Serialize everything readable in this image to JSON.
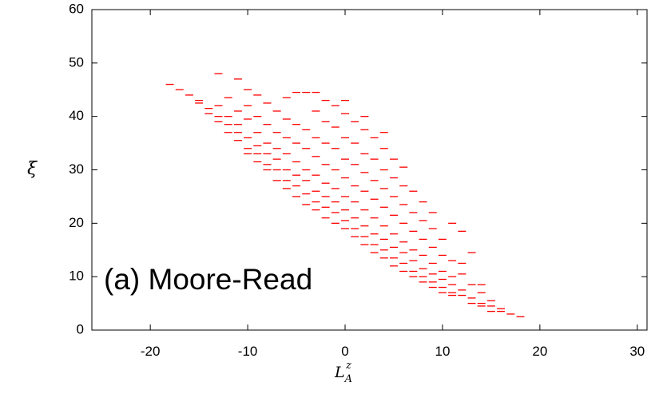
{
  "chart_data": {
    "type": "scatter",
    "annotation": "(a) Moore-Read",
    "x_label": {
      "base": "L",
      "sub": "A",
      "sup": "z"
    },
    "y_label": "ξ",
    "color": "#ff0000",
    "xlim": [
      -26,
      31
    ],
    "ylim": [
      0,
      60
    ],
    "xticks": [
      -20,
      -10,
      0,
      10,
      20,
      30
    ],
    "yticks": [
      0,
      10,
      20,
      30,
      40,
      50,
      60
    ],
    "x": [
      -18,
      -17,
      -16,
      -15,
      -15,
      -14,
      -14,
      -13,
      -13,
      -13,
      -13,
      -12,
      -12,
      -12,
      -12,
      -11,
      -11,
      -11,
      -11,
      -11,
      -10,
      -10,
      -10,
      -10,
      -10,
      -10,
      -9,
      -9,
      -9,
      -9,
      -9,
      -9,
      -8,
      -8,
      -8,
      -8,
      -8,
      -8,
      -7,
      -7,
      -7,
      -7,
      -7,
      -7,
      -6,
      -6,
      -6,
      -6,
      -6,
      -6,
      -6,
      -5,
      -5,
      -5,
      -5,
      -5,
      -5,
      -5,
      -4,
      -4,
      -4,
      -4,
      -4,
      -4,
      -4,
      -3,
      -3,
      -3,
      -3,
      -3,
      -3,
      -3,
      -3,
      -2,
      -2,
      -2,
      -2,
      -2,
      -2,
      -2,
      -2,
      -1,
      -1,
      -1,
      -1,
      -1,
      -1,
      -1,
      -1,
      0,
      0,
      0,
      0,
      0,
      0,
      0,
      0,
      0,
      1,
      1,
      1,
      1,
      1,
      1,
      1,
      1,
      2,
      2,
      2,
      2,
      2,
      2,
      2,
      2,
      2,
      3,
      3,
      3,
      3,
      3,
      3,
      3,
      3,
      4,
      4,
      4,
      4,
      4,
      4,
      4,
      4,
      4,
      5,
      5,
      5,
      5,
      5,
      5,
      5,
      5,
      6,
      6,
      6,
      6,
      6,
      6,
      6,
      6,
      7,
      7,
      7,
      7,
      7,
      7,
      7,
      8,
      8,
      8,
      8,
      8,
      8,
      8,
      9,
      9,
      9,
      9,
      9,
      9,
      9,
      10,
      10,
      10,
      10,
      10,
      10,
      11,
      11,
      11,
      11,
      11,
      11,
      12,
      12,
      12,
      12,
      12,
      13,
      13,
      13,
      13,
      14,
      14,
      14,
      14,
      15,
      15,
      15,
      16,
      16,
      17,
      18
    ],
    "values": [
      46,
      45,
      44,
      42.5,
      43,
      41.5,
      40.5,
      48,
      40,
      39,
      42,
      38.5,
      37,
      43.5,
      40,
      47,
      37,
      35.5,
      38.5,
      41,
      36,
      34,
      33,
      39.5,
      42,
      45,
      34.5,
      33,
      31.5,
      37,
      40,
      44,
      33,
      31,
      30,
      35,
      38.5,
      42.5,
      32,
      30,
      28,
      34,
      37,
      41,
      30,
      28,
      26.5,
      33,
      36,
      39.5,
      43.5,
      29,
      27,
      25,
      31.5,
      35,
      38.5,
      44.5,
      28,
      25.5,
      23.5,
      30,
      34,
      37.5,
      44.5,
      26,
      24,
      22.5,
      29,
      32.5,
      36,
      41,
      44.5,
      25,
      23,
      21,
      27.5,
      31,
      35,
      39,
      43,
      24,
      22,
      20,
      26.5,
      30,
      34,
      38,
      42,
      22.5,
      20.5,
      19,
      25,
      28.5,
      32,
      36,
      40.5,
      43,
      21,
      19,
      17.5,
      24,
      27,
      31,
      35,
      39,
      19.5,
      17.5,
      16,
      22.5,
      26,
      29.5,
      33,
      37.5,
      40,
      18,
      16,
      14.5,
      21,
      24.5,
      28,
      32,
      36,
      17,
      15,
      13.5,
      19.5,
      23,
      26.5,
      30,
      34,
      37,
      15.5,
      13.5,
      12,
      18,
      21.5,
      25,
      28.5,
      32,
      14.5,
      12.5,
      11,
      16.5,
      20,
      23.5,
      27,
      30.5,
      13,
      11,
      10,
      15,
      18.5,
      22,
      26,
      11.5,
      10,
      9,
      14,
      17,
      20.5,
      24,
      10.5,
      9,
      8,
      12.5,
      15.5,
      19,
      22,
      9.5,
      8,
      7,
      11,
      14,
      17,
      8.5,
      7,
      6.5,
      10,
      13,
      20,
      7.5,
      6.5,
      10.5,
      12.5,
      18.5,
      6,
      5,
      8.5,
      14.5,
      5,
      4.5,
      7,
      8.5,
      4.5,
      3.5,
      5.5,
      4,
      3.5,
      3,
      2.5
    ]
  }
}
